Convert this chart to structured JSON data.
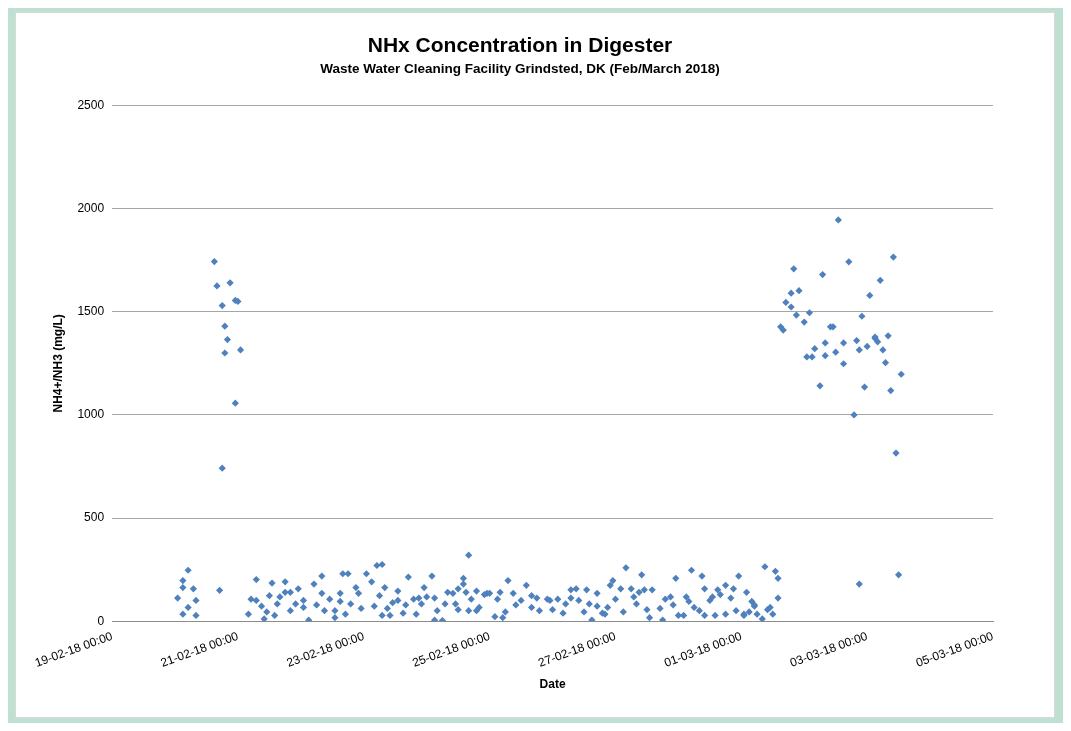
{
  "chart_data": {
    "type": "scatter",
    "title": "NHx Concentration in Digester",
    "subtitle": "Waste Water Cleaning Facility Grindsted, DK (Feb/March 2018)",
    "xlabel": "Date",
    "ylabel": "NH4+/NH3 (mg/L)",
    "xlim": [
      "2018-02-19T00:00",
      "2018-03-05T00:00"
    ],
    "xticks": [
      {
        "value": "2018-02-19T00:00",
        "label": "19-02-18 00:00"
      },
      {
        "value": "2018-02-21T00:00",
        "label": "21-02-18 00:00"
      },
      {
        "value": "2018-02-23T00:00",
        "label": "23-02-18 00:00"
      },
      {
        "value": "2018-02-25T00:00",
        "label": "25-02-18 00:00"
      },
      {
        "value": "2018-02-27T00:00",
        "label": "27-02-18 00:00"
      },
      {
        "value": "2018-03-01T00:00",
        "label": "01-03-18 00:00"
      },
      {
        "value": "2018-03-03T00:00",
        "label": "03-03-18 00:00"
      },
      {
        "value": "2018-03-05T00:00",
        "label": "05-03-18 00:00"
      }
    ],
    "ylim": [
      0,
      2500
    ],
    "yticks": [
      0,
      500,
      1000,
      1500,
      2000,
      2500
    ],
    "grid": "y",
    "legend": false,
    "marker": "diamond",
    "series": [
      {
        "color": "#4f81bd",
        "x": [
          "2018-02-20T01:00",
          "2018-02-20T03:00",
          "2018-02-20T05:00",
          "2018-02-20T03:00",
          "2018-02-20T07:00",
          "2018-02-20T03:00",
          "2018-02-20T05:00",
          "2018-02-20T08:00",
          "2018-02-20T08:00",
          "2018-02-20T17:00",
          "2018-02-20T15:00",
          "2018-02-20T16:00",
          "2018-02-20T18:00",
          "2018-02-20T21:00",
          "2018-02-20T19:00",
          "2018-02-20T20:00",
          "2018-02-20T19:00",
          "2018-02-20T23:00",
          "2018-02-21T00:00",
          "2018-02-21T01:00",
          "2018-02-20T23:00",
          "2018-02-20T18:00",
          "2018-02-21T04:00",
          "2018-02-21T05:00",
          "2018-02-21T07:00",
          "2018-02-21T07:00",
          "2018-02-21T09:00",
          "2018-02-21T10:00",
          "2018-02-21T11:00",
          "2018-02-21T12:00",
          "2018-02-21T13:00",
          "2018-02-21T14:00",
          "2018-02-21T15:00",
          "2018-02-21T16:00",
          "2018-02-21T18:00",
          "2018-02-21T18:00",
          "2018-02-21T20:00",
          "2018-02-21T20:00",
          "2018-02-21T22:00",
          "2018-02-21T23:00",
          "2018-02-22T01:00",
          "2018-02-22T01:00",
          "2018-02-22T03:00",
          "2018-02-22T05:00",
          "2018-02-22T06:00",
          "2018-02-22T08:00",
          "2018-02-22T08:00",
          "2018-02-22T09:00",
          "2018-02-22T11:00",
          "2018-02-22T13:00",
          "2018-02-22T13:00",
          "2018-02-22T15:00",
          "2018-02-22T15:00",
          "2018-02-22T16:00",
          "2018-02-22T18:00",
          "2018-02-22T17:00",
          "2018-02-22T19:00",
          "2018-02-22T21:00",
          "2018-02-22T22:00",
          "2018-02-22T23:00",
          "2018-02-23T01:00",
          "2018-02-23T03:00",
          "2018-02-23T04:00",
          "2018-02-23T05:00",
          "2018-02-23T07:00",
          "2018-02-23T06:00",
          "2018-02-23T07:00",
          "2018-02-23T08:00",
          "2018-02-23T09:00",
          "2018-02-23T10:00",
          "2018-02-23T11:00",
          "2018-02-23T13:00",
          "2018-02-23T13:00",
          "2018-02-23T15:00",
          "2018-02-23T16:00",
          "2018-02-23T17:00",
          "2018-02-23T19:00",
          "2018-02-23T20:00",
          "2018-02-23T21:00",
          "2018-02-23T22:00",
          "2018-02-23T23:00",
          "2018-02-24T00:00",
          "2018-02-24T02:00",
          "2018-02-24T03:00",
          "2018-02-24T03:00",
          "2018-02-24T04:00",
          "2018-02-24T06:00",
          "2018-02-24T07:00",
          "2018-02-24T08:00",
          "2018-02-24T10:00",
          "2018-02-24T11:00",
          "2018-02-24T12:00",
          "2018-02-24T12:00",
          "2018-02-24T14:00",
          "2018-02-24T14:00",
          "2018-02-24T15:00",
          "2018-02-24T16:00",
          "2018-02-24T16:00",
          "2018-02-24T17:00",
          "2018-02-24T19:00",
          "2018-02-24T19:00",
          "2018-02-24T20:00",
          "2018-02-24T22:00",
          "2018-02-24T23:00",
          "2018-02-25T00:00",
          "2018-02-25T02:00",
          "2018-02-25T03:00",
          "2018-02-25T04:00",
          "2018-02-25T05:00",
          "2018-02-25T06:00",
          "2018-02-25T07:00",
          "2018-02-25T09:00",
          "2018-02-25T10:00",
          "2018-02-25T12:00",
          "2018-02-25T14:00",
          "2018-02-25T16:00",
          "2018-02-25T16:00",
          "2018-02-25T18:00",
          "2018-02-25T19:00",
          "2018-02-25T22:00",
          "2018-02-25T23:00",
          "2018-02-26T00:00",
          "2018-02-26T02:00",
          "2018-02-26T04:00",
          "2018-02-26T05:00",
          "2018-02-26T07:00",
          "2018-02-26T07:00",
          "2018-02-26T09:00",
          "2018-02-26T10:00",
          "2018-02-26T12:00",
          "2018-02-26T13:00",
          "2018-02-26T14:00",
          "2018-02-26T15:00",
          "2018-02-26T17:00",
          "2018-02-26T17:00",
          "2018-02-26T19:00",
          "2018-02-26T20:00",
          "2018-02-26T21:00",
          "2018-02-26T22:00",
          "2018-02-26T23:00",
          "2018-02-27T00:00",
          "2018-02-27T02:00",
          "2018-02-27T03:00",
          "2018-02-27T04:00",
          "2018-02-27T06:00",
          "2018-02-27T07:00",
          "2018-02-27T08:00",
          "2018-02-27T09:00",
          "2018-02-27T10:00",
          "2018-02-27T11:00",
          "2018-02-27T12:00",
          "2018-02-27T13:00",
          "2018-02-27T14:00",
          "2018-02-27T17:00",
          "2018-02-27T18:00",
          "2018-02-27T19:00",
          "2018-02-27T21:00",
          "2018-02-27T22:00",
          "2018-02-27T23:00",
          "2018-02-28T00:00",
          "2018-02-28T02:00",
          "2018-02-28T03:00",
          "2018-02-28T04:00",
          "2018-02-28T05:00",
          "2018-02-28T06:00",
          "2018-02-28T08:00",
          "2018-02-28T09:00",
          "2018-02-28T10:00",
          "2018-02-28T10:00",
          "2018-02-28T12:00",
          "2018-02-28T13:00",
          "2018-02-28T14:00",
          "2018-02-28T15:00",
          "2018-02-28T16:00",
          "2018-02-28T18:00",
          "2018-02-28T18:00",
          "2018-02-28T20:00",
          "2018-02-28T21:00",
          "2018-02-28T22:00",
          "2018-02-28T23:00",
          "2018-03-01T01:00",
          "2018-03-01T01:00",
          "2018-03-01T02:00",
          "2018-03-01T03:00",
          "2018-03-01T04:00",
          "2018-03-01T05:00",
          "2018-03-01T05:00",
          "2018-03-01T06:00",
          "2018-03-01T08:00",
          "2018-03-01T09:00",
          "2018-03-01T10:00",
          "2018-03-01T11:00",
          "2018-03-01T12:00",
          "2018-03-01T13:00",
          "2018-03-01T14:00",
          "2018-03-01T14:00",
          "2018-03-02T21:00",
          "2018-03-03T12:00",
          "2018-03-02T13:00",
          "2018-03-03T10:00",
          "2018-03-02T17:00",
          "2018-03-01T20:00",
          "2018-03-02T07:00",
          "2018-03-03T05:00",
          "2018-03-01T22:00",
          "2018-03-01T19:00",
          "2018-03-03T01:00",
          "2018-03-01T17:00",
          "2018-03-01T19:00",
          "2018-03-01T21:00",
          "2018-03-02T02:00",
          "2018-03-02T00:00",
          "2018-03-02T22:00",
          "2018-03-01T15:00",
          "2018-03-01T16:00",
          "2018-03-02T10:00",
          "2018-03-02T11:00",
          "2018-03-02T08:00",
          "2018-03-02T15:00",
          "2018-03-02T20:00",
          "2018-03-02T04:00",
          "2018-03-02T01:00",
          "2018-03-02T03:00",
          "2018-03-02T08:00",
          "2018-03-02T12:00",
          "2018-03-02T21:00",
          "2018-03-03T00:00",
          "2018-03-03T03:00",
          "2018-03-03T03:00",
          "2018-03-03T04:00",
          "2018-03-03T08:00",
          "2018-03-03T06:00",
          "2018-03-02T15:00",
          "2018-03-03T07:00",
          "2018-03-03T13:00",
          "2018-03-02T06:00",
          "2018-03-02T23:00",
          "2018-03-03T09:00",
          "2018-03-02T19:00",
          "2018-03-03T11:00"
        ],
        "values": [
          112,
          197,
          247,
          163,
          157,
          34,
          67,
          101,
          28,
          150,
          1743,
          1625,
          1530,
          1640,
          1430,
          1365,
          1300,
          1555,
          1550,
          1315,
          1057,
          742,
          34,
          107,
          202,
          101,
          73,
          11,
          45,
          124,
          185,
          28,
          84,
          118,
          191,
          140,
          51,
          140,
          84,
          157,
          101,
          67,
          5,
          180,
          79,
          135,
          219,
          51,
          107,
          51,
          17,
          96,
          135,
          230,
          230,
          34,
          84,
          163,
          135,
          62,
          230,
          191,
          73,
          270,
          275,
          124,
          28,
          163,
          62,
          28,
          90,
          146,
          101,
          39,
          79,
          214,
          107,
          34,
          112,
          84,
          163,
          118,
          219,
          5,
          112,
          51,
          3,
          84,
          140,
          135,
          84,
          157,
          56,
          180,
          208,
          140,
          51,
          320,
          107,
          146,
          51,
          67,
          129,
          135,
          135,
          22,
          107,
          140,
          17,
          45,
          197,
          135,
          79,
          101,
          174,
          124,
          67,
          112,
          51,
          107,
          101,
          56,
          107,
          39,
          84,
          152,
          112,
          157,
          101,
          45,
          152,
          84,
          6,
          135,
          73,
          39,
          34,
          67,
          174,
          197,
          107,
          157,
          45,
          259,
          157,
          118,
          84,
          140,
          225,
          152,
          56,
          17,
          152,
          62,
          6,
          107,
          118,
          79,
          208,
          28,
          28,
          118,
          96,
          247,
          67,
          51,
          219,
          157,
          28,
          101,
          118,
          28,
          152,
          129,
          174,
          34,
          112,
          157,
          51,
          219,
          34,
          28,
          140,
          45,
          96,
          73,
          79,
          34,
          11,
          264,
          56,
          67,
          34,
          242,
          208,
          112,
          180,
          225,
          1945,
          1765,
          1742,
          1708,
          1680,
          1652,
          1602,
          1590,
          1579,
          1545,
          1523,
          1484,
          1495,
          1450,
          1478,
          1427,
          1411,
          1427,
          1427,
          1349,
          1349,
          1360,
          1321,
          1281,
          1281,
          1287,
          1304,
          1315,
          1332,
          1377,
          1371,
          1354,
          1383,
          1315,
          1248,
          1253,
          1197,
          1141,
          1135,
          1118,
          1000,
          815
        ]
      }
    ]
  }
}
